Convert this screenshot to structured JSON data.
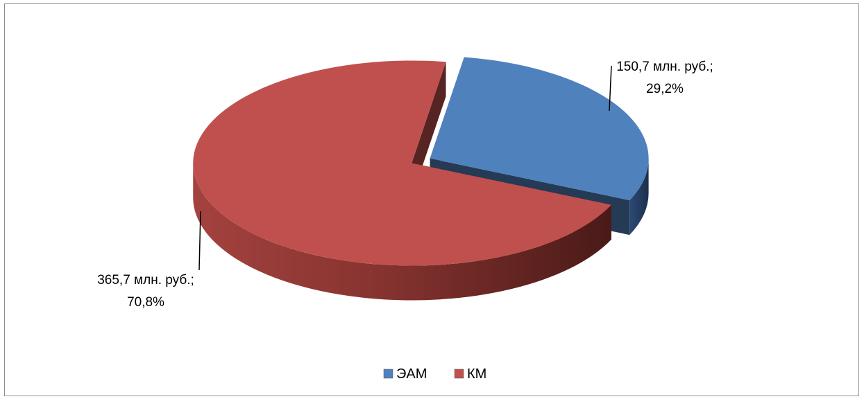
{
  "chart_data": {
    "type": "pie",
    "title": "",
    "categories": [
      "ЭАМ",
      "КМ"
    ],
    "values": [
      150.7,
      365.7
    ],
    "percents": [
      29.2,
      70.8
    ],
    "colors": [
      "#4F81BD",
      "#C0504D"
    ],
    "data_labels": [
      {
        "line1": "150,7 млн. руб.;",
        "line2": "29,2%"
      },
      {
        "line1": "365,7 млн. руб.;",
        "line2": "70,8%"
      }
    ],
    "legend": {
      "position": "bottom",
      "items": [
        "ЭАМ",
        "КМ"
      ]
    },
    "exploded": true,
    "three_d": true
  }
}
